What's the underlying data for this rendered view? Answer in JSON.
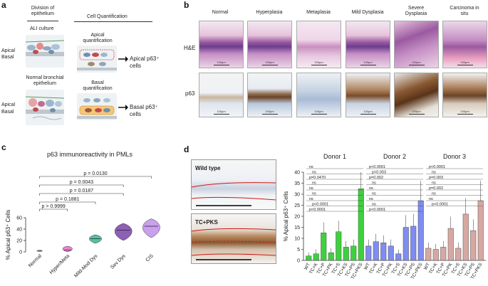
{
  "panel_a": {
    "letter": "a",
    "division_title": "Division of\nepithelium",
    "ali_label": "ALI culture",
    "apical_label": "Apical",
    "basal_label": "Basal",
    "normal_label": "Normal bronchial\nepithelium",
    "apical_label2": "Apical",
    "basal_label2": "Basal",
    "quant_title": "Cell Quantification",
    "apical_quant": "Apical\nquantification",
    "apical_result": "Apical p63⁺\ncells",
    "basal_quant": "Basal\nquantification",
    "basal_result": "Basal p63⁺\ncells"
  },
  "panel_b": {
    "letter": "b",
    "columns": [
      "Normal",
      "Hyperplasia",
      "Metaplasia",
      "Mild Dysplasia",
      "Severe\nDysplasia",
      "Carcinoma in\nsitu"
    ],
    "row_he": "H&E",
    "row_p63": "p63",
    "scale_label": "100µm"
  },
  "panel_c": {
    "letter": "c",
    "title": "p63 immunoreactivity in PMLs",
    "ylabel": "% Apical p63⁺ Cells"
  },
  "panel_d": {
    "letter": "d",
    "wild_type_label": "Wild type",
    "tc_pks_label": "TC+PKS",
    "ylabel": "% Apical p63⁺ Cells"
  },
  "chart_data": [
    {
      "type": "violin",
      "title": "p63 immunoreactivity in PMLs",
      "ylabel": "% Apical p63⁺ Cells",
      "ylim": [
        0,
        60
      ],
      "yticks": [
        0,
        20,
        40,
        60
      ],
      "categories": [
        "Normal",
        "Hyper/Meta",
        "Mild-Mod Dys",
        "Sev Dys",
        "CIS"
      ],
      "colors": [
        "#d8d8d8",
        "#f07fd0",
        "#55c0a6",
        "#8e5fb6",
        "#c8a0ee"
      ],
      "medians": [
        1.5,
        3,
        23,
        38,
        45
      ],
      "ranges": [
        [
          0.5,
          3
        ],
        [
          0,
          10
        ],
        [
          15,
          30
        ],
        [
          20,
          50
        ],
        [
          25,
          58
        ]
      ],
      "comparisons": [
        {
          "label": "p > 0.9999",
          "to": 1
        },
        {
          "label": "p = 0.1881",
          "to": 2
        },
        {
          "label": "p = 0.0187",
          "to": 3
        },
        {
          "label": "p = 0.0043",
          "to": 3
        },
        {
          "label": "p = 0.0130",
          "to": 4
        }
      ]
    },
    {
      "type": "bar",
      "ylabel": "% Apical p63⁺ Cells",
      "ylim": [
        0,
        40
      ],
      "yticks": [
        0,
        5,
        10,
        15,
        20,
        25,
        30,
        35,
        40
      ],
      "donors": [
        {
          "name": "Donor 1",
          "color": "#3fd03f",
          "categories": [
            "WT",
            "TC+K",
            "TC+P",
            "TC+PK",
            "TC+S",
            "TC+KS",
            "TC+PS",
            "TC+PKS"
          ],
          "values": [
            2,
            3,
            12.5,
            3.5,
            13,
            6,
            6.5,
            32.5
          ],
          "stats": [
            "ns",
            "ns",
            "p=0.0470",
            "ns",
            "ns",
            "ns",
            "ns",
            "p<0.0001",
            "p<0.0001"
          ]
        },
        {
          "name": "Donor 2",
          "color": "#7f8cf0",
          "categories": [
            "WT",
            "TC+K",
            "TC+P",
            "TC+PK",
            "TC+S",
            "TC+KS",
            "TC+PS",
            "TC+PKS"
          ],
          "values": [
            6.5,
            8.5,
            8,
            6.5,
            3,
            15,
            15.5,
            27
          ],
          "stats": [
            "p<0.0001",
            "p=0.003",
            "p=0.002",
            "ns",
            "ns",
            "ns",
            "ns",
            "ns",
            "p<0.0001"
          ]
        },
        {
          "name": "Donor 3",
          "color": "#d7a8a2",
          "categories": [
            "WT",
            "TC+K",
            "TC+P",
            "TC+PK",
            "TC+S",
            "TC+KS",
            "TC+PS",
            "TC+PKS"
          ],
          "values": [
            5.5,
            5,
            6,
            14.5,
            5.5,
            21,
            13.5,
            27
          ],
          "stats": [
            "p<0.0001",
            "ns",
            "p=0.003",
            "ns",
            "p=0.002",
            "ns",
            "ns",
            "p<0.0001"
          ]
        }
      ]
    }
  ]
}
